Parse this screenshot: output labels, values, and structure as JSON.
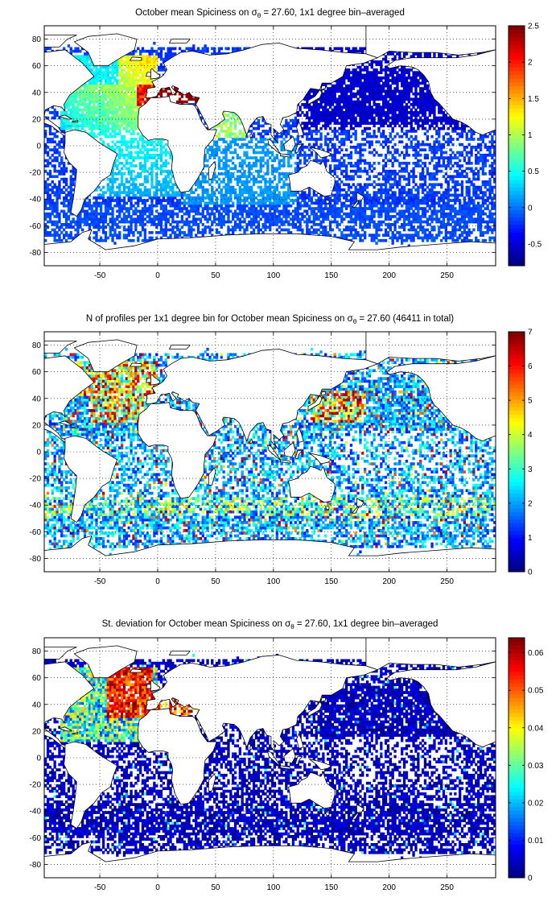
{
  "figure": {
    "background": "#ffffff",
    "axis_color": "#000000",
    "grid_color": "#000000",
    "land_color": "#ffffff"
  },
  "chart_data": [
    {
      "type": "heatmap",
      "title": "October mean Spiciness on σθ = 27.60, 1x1 degree bin–averaged",
      "xlim": [
        -98,
        292
      ],
      "ylim": [
        -90,
        90
      ],
      "x_ticks": [
        -50,
        0,
        50,
        100,
        150,
        200,
        250
      ],
      "y_ticks": [
        -80,
        -60,
        -40,
        -20,
        0,
        20,
        40,
        60,
        80
      ],
      "grid": true,
      "colormap": "jet",
      "colorbar": {
        "min": -0.8,
        "max": 2.5,
        "ticks": [
          -0.5,
          0,
          0.5,
          1,
          1.5,
          2,
          2.5
        ],
        "position": "right"
      },
      "field_description": "high values (1–2.5) in North Atlantic and Mediterranean outflow; near 0 to -0.5 in Pacific and Southern Ocean"
    },
    {
      "type": "heatmap",
      "title": "N of profiles per 1x1 degree bin for October mean Spiciness on σθ = 27.60 (46411 in total)",
      "total_profiles": 46411,
      "xlim": [
        -98,
        292
      ],
      "ylim": [
        -90,
        90
      ],
      "x_ticks": [
        -50,
        0,
        50,
        100,
        150,
        200,
        250
      ],
      "y_ticks": [
        -80,
        -60,
        -40,
        -20,
        0,
        20,
        40,
        60,
        80
      ],
      "grid": true,
      "colormap": "jet",
      "colorbar": {
        "min": 0,
        "max": 7,
        "ticks": [
          0,
          1,
          2,
          3,
          4,
          5,
          6,
          7
        ],
        "position": "right"
      },
      "field_description": "counts mostly 1–3, higher (5–7) in North Atlantic subpolar and Kuroshio regions"
    },
    {
      "type": "heatmap",
      "title": "St. deviation for October mean Spiciness on σθ = 27.60, 1x1 degree bin–averaged",
      "xlim": [
        -98,
        292
      ],
      "ylim": [
        -90,
        90
      ],
      "x_ticks": [
        -50,
        0,
        50,
        100,
        150,
        200,
        250
      ],
      "y_ticks": [
        -80,
        -60,
        -40,
        -20,
        0,
        20,
        40,
        60,
        80
      ],
      "grid": true,
      "colormap": "jet",
      "colorbar": {
        "min": 0,
        "max": 0.064,
        "ticks": [
          0,
          0.01,
          0.02,
          0.03,
          0.04,
          0.05,
          0.06
        ],
        "position": "right"
      },
      "field_description": "mostly near 0; high (≥0.06) in North Atlantic 30–65N and Mediterranean outflow"
    }
  ]
}
